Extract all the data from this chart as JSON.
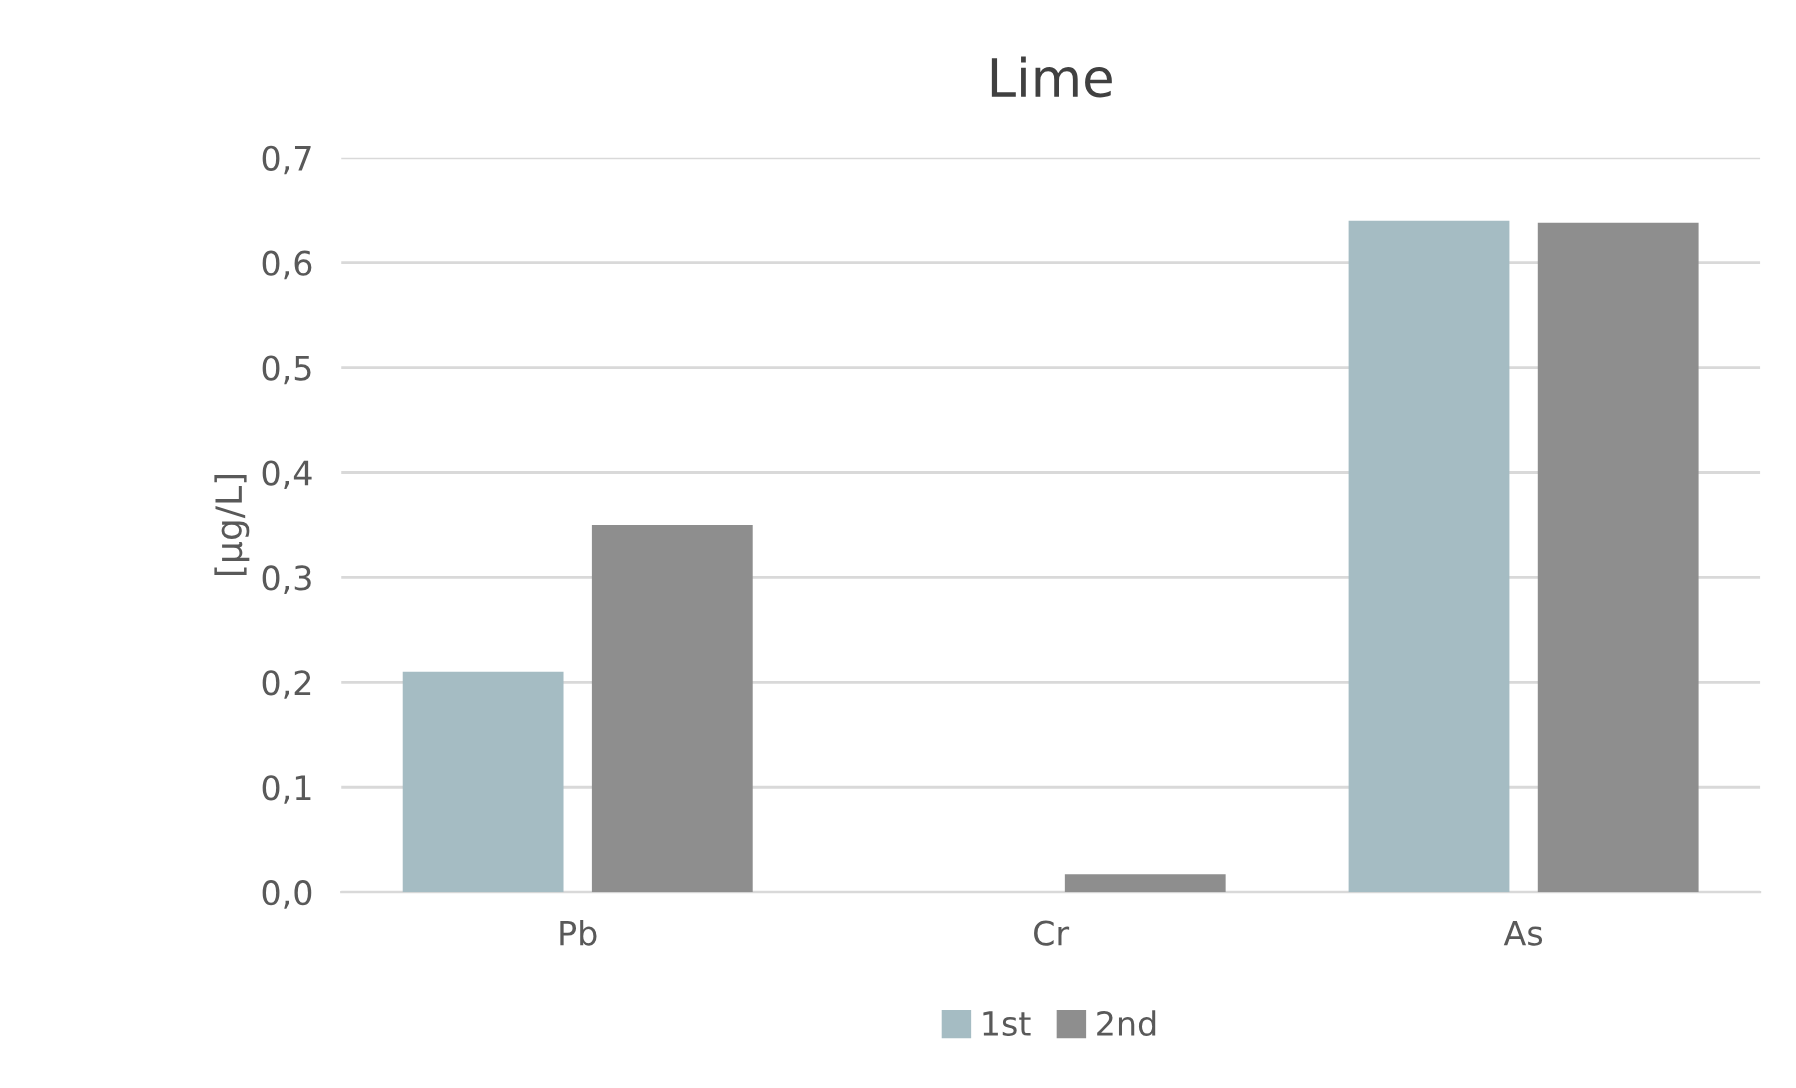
{
  "chart_data": {
    "type": "bar",
    "title": "Lime",
    "ylabel": "[µg/L]",
    "categories": [
      "Pb",
      "Cr",
      "As"
    ],
    "series": [
      {
        "name": "1st",
        "color": "#a5bcc3",
        "values": [
          0.21,
          0,
          0.64
        ]
      },
      {
        "name": "2nd",
        "color": "#8e8e8e",
        "values": [
          0.35,
          0.017,
          0.638
        ]
      }
    ],
    "ylim": [
      0,
      0.7
    ],
    "yticks": [
      {
        "value": 0,
        "label": "0,0"
      },
      {
        "value": 0.1,
        "label": "0,1"
      },
      {
        "value": 0.2,
        "label": "0,2"
      },
      {
        "value": 0.3,
        "label": "0,3"
      },
      {
        "value": 0.4,
        "label": "0,4"
      },
      {
        "value": 0.5,
        "label": "0,5"
      },
      {
        "value": 0.6,
        "label": "0,6"
      },
      {
        "value": 0.7,
        "label": "0,7"
      }
    ],
    "grid": "y",
    "legend": "bottom"
  }
}
